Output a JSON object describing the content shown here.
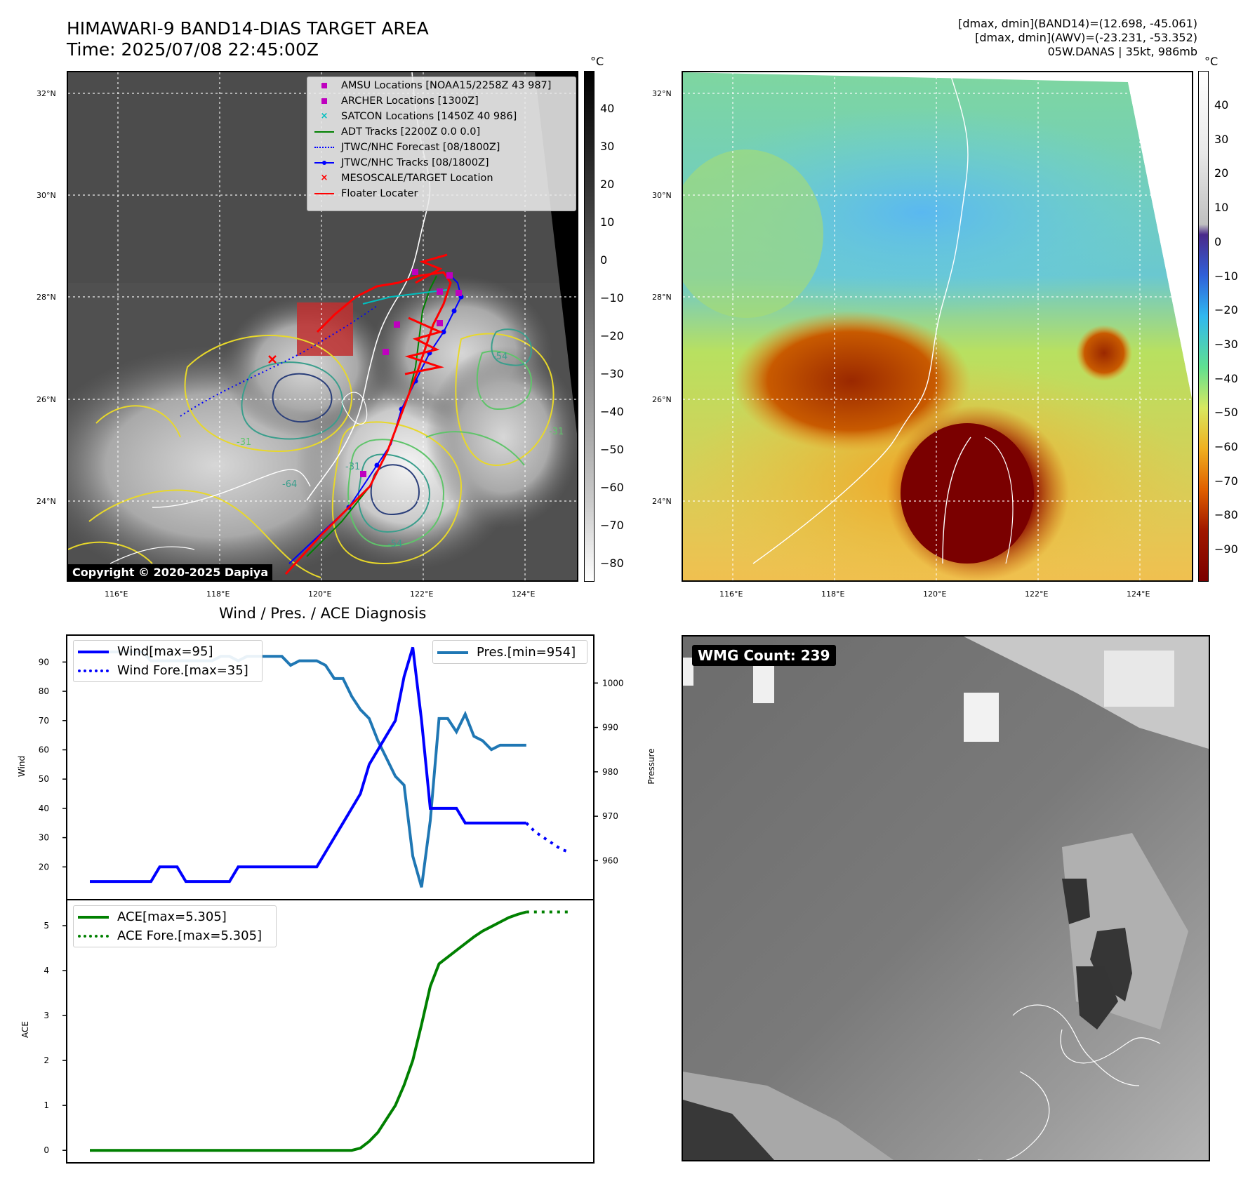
{
  "header": {
    "title_line1": "HIMAWARI-9 BAND14-DIAS TARGET AREA",
    "title_line2": "Time: 2025/07/08 22:45:00Z",
    "meta_line1": "[dmax, dmin](BAND14)=(12.698, -45.061)",
    "meta_line2": "[dmax, dmin](AWV)=(-23.231, -53.352)",
    "meta_line3": "05W.DANAS | 35kt, 986mb"
  },
  "map": {
    "lat_labels": [
      "32°N",
      "30°N",
      "28°N",
      "26°N",
      "24°N"
    ],
    "lon_labels": [
      "116°E",
      "118°E",
      "120°E",
      "122°E",
      "124°E"
    ],
    "contour_labels": [
      "-31",
      "-54",
      "-31",
      "-64",
      "-54",
      "-31"
    ],
    "copyright": "Copyright © 2020-2025 Dapiya"
  },
  "legend": [
    {
      "label": "AMSU Locations [NOAA15/2258Z 43 987]",
      "marker": "square",
      "color": "#bf00bf"
    },
    {
      "label": "ARCHER Locations [1300Z]",
      "marker": "square",
      "color": "#bf00bf"
    },
    {
      "label": "SATCON Locations [1450Z 40 986]",
      "marker": "x",
      "color": "#00bfbf"
    },
    {
      "label": "ADT Tracks [2200Z 0.0 0.0]",
      "marker": "line",
      "color": "#008000"
    },
    {
      "label": "JTWC/NHC Forecast [08/1800Z]",
      "marker": "dotted",
      "color": "#0000ff"
    },
    {
      "label": "JTWC/NHC Tracks [08/1800Z]",
      "marker": "line-dot",
      "color": "#0000ff"
    },
    {
      "label": "MESOSCALE/TARGET Location",
      "marker": "x",
      "color": "#ff0000"
    },
    {
      "label": "Floater Locater",
      "marker": "line",
      "color": "#ff0000"
    }
  ],
  "colorbar_left": {
    "unit": "°C",
    "ticks": [
      "40",
      "30",
      "20",
      "10",
      "0",
      "−10",
      "−20",
      "−30",
      "−40",
      "−50",
      "−60",
      "−70",
      "−80"
    ]
  },
  "colorbar_right": {
    "unit": "°C",
    "ticks": [
      "40",
      "30",
      "20",
      "10",
      "0",
      "−10",
      "−20",
      "−30",
      "−40",
      "−50",
      "−60",
      "−70",
      "−80",
      "−90"
    ]
  },
  "diagnosis": {
    "title": "Wind / Pres. / ACE Diagnosis",
    "wind_legend": "Wind[max=95]",
    "wind_fore_legend": "Wind Fore.[max=35]",
    "pres_legend": "Pres.[min=954]",
    "ace_legend": "ACE[max=5.305]",
    "ace_fore_legend": "ACE Fore.[max=5.305]",
    "wind_ylabel": "Wind",
    "pres_ylabel": "Pressure",
    "ace_ylabel": "ACE"
  },
  "wmg": {
    "label": "WMG Count: 239"
  },
  "colors": {
    "wind": "#0000ff",
    "pressure": "#1f77b4",
    "ace": "#008000",
    "floater": "#ff0000"
  },
  "chart_data": [
    {
      "type": "line",
      "title": "Wind / Pres. / ACE Diagnosis",
      "ylabel": "Wind",
      "ylim": [
        10,
        98
      ],
      "series": [
        {
          "name": "Wind[max=95]",
          "x": [
            0,
            1,
            2,
            3,
            4,
            5,
            6,
            7,
            8,
            9,
            10,
            11,
            12,
            13,
            14,
            15,
            16,
            17,
            18,
            19,
            20,
            21,
            22,
            23,
            24,
            25,
            26,
            27,
            28,
            29,
            30,
            31,
            32,
            33,
            34,
            35,
            36,
            37,
            38,
            39,
            40,
            41,
            42,
            43,
            44,
            45,
            46,
            47,
            48,
            49,
            50
          ],
          "y": [
            15,
            15,
            15,
            15,
            15,
            15,
            15,
            15,
            20,
            20,
            20,
            15,
            15,
            15,
            15,
            15,
            15,
            20,
            20,
            20,
            20,
            20,
            20,
            20,
            20,
            20,
            20,
            25,
            30,
            35,
            40,
            45,
            55,
            60,
            65,
            70,
            85,
            95,
            70,
            40,
            40,
            40,
            40,
            35,
            35,
            35,
            35,
            35,
            35,
            35,
            35
          ]
        },
        {
          "name": "Wind Fore.[max=35]",
          "x": [
            50,
            51,
            52,
            53,
            54,
            55
          ],
          "y": [
            35,
            32,
            30,
            28,
            26,
            25
          ]
        }
      ],
      "secondary_axis": {
        "ylabel": "Pressure",
        "ylim": [
          952,
          1010
        ],
        "series": [
          {
            "name": "Pres.[min=954]",
            "x": [
              0,
              1,
              2,
              3,
              4,
              5,
              6,
              7,
              8,
              9,
              10,
              11,
              12,
              13,
              14,
              15,
              16,
              17,
              18,
              19,
              20,
              21,
              22,
              23,
              24,
              25,
              26,
              27,
              28,
              29,
              30,
              31,
              32,
              33,
              34,
              35,
              36,
              37,
              38,
              39,
              40,
              41,
              42,
              43,
              44,
              45,
              46,
              47,
              48,
              49,
              50
            ],
            "y": [
              1007,
              1007,
              1007,
              1007,
              1007,
              1007,
              1007,
              1005,
              1005,
              1005,
              1005,
              1005,
              1005,
              1005,
              1005,
              1006,
              1006,
              1005,
              1006,
              1006,
              1006,
              1006,
              1006,
              1004,
              1005,
              1005,
              1005,
              1004,
              1001,
              1001,
              997,
              994,
              992,
              987,
              983,
              979,
              977,
              961,
              954,
              969,
              992,
              992,
              989,
              993,
              988,
              987,
              985,
              986,
              986,
              986,
              986
            ]
          }
        ]
      }
    },
    {
      "type": "line",
      "ylabel": "ACE",
      "ylim": [
        -0.2,
        5.5
      ],
      "series": [
        {
          "name": "ACE[max=5.305]",
          "x": [
            0,
            5,
            10,
            15,
            20,
            25,
            30,
            31,
            32,
            33,
            34,
            35,
            36,
            37,
            38,
            39,
            40,
            41,
            42,
            43,
            44,
            45,
            46,
            47,
            48,
            49,
            50
          ],
          "y": [
            0,
            0,
            0,
            0,
            0,
            0,
            0,
            0.05,
            0.2,
            0.4,
            0.7,
            1.0,
            1.45,
            2.0,
            2.8,
            3.65,
            4.15,
            4.3,
            4.45,
            4.6,
            4.75,
            4.88,
            4.98,
            5.08,
            5.18,
            5.25,
            5.305
          ]
        },
        {
          "name": "ACE Fore.[max=5.305]",
          "x": [
            50,
            55
          ],
          "y": [
            5.305,
            5.305
          ]
        }
      ]
    }
  ]
}
